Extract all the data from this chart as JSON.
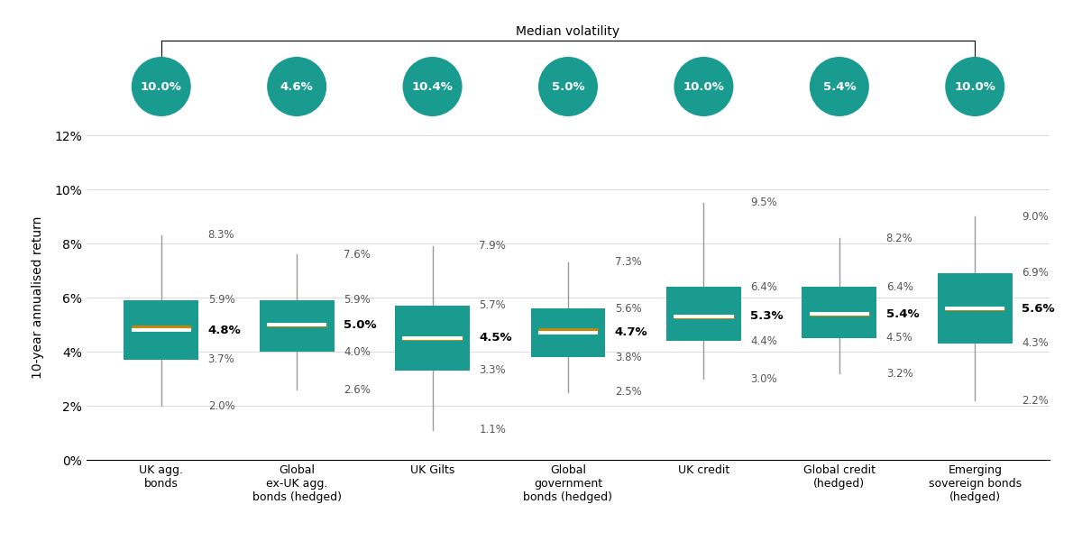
{
  "categories": [
    "UK agg.\nbonds",
    "Global\nex-UK agg.\nbonds (hedged)",
    "UK Gilts",
    "Global\ngovernment\nbonds (hedged)",
    "UK credit",
    "Global credit\n(hedged)",
    "Emerging\nsovereign bonds\n(hedged)"
  ],
  "box_data": [
    {
      "whisker_low": 2.0,
      "q1": 3.7,
      "median": 4.8,
      "mean": 4.9,
      "q3": 5.9,
      "whisker_high": 8.3
    },
    {
      "whisker_low": 2.6,
      "q1": 4.0,
      "median": 5.0,
      "mean": 5.0,
      "q3": 5.9,
      "whisker_high": 7.6
    },
    {
      "whisker_low": 1.1,
      "q1": 3.3,
      "median": 4.5,
      "mean": 4.5,
      "q3": 5.7,
      "whisker_high": 7.9
    },
    {
      "whisker_low": 2.5,
      "q1": 3.8,
      "median": 4.7,
      "mean": 4.8,
      "q3": 5.6,
      "whisker_high": 7.3
    },
    {
      "whisker_low": 3.0,
      "q1": 4.4,
      "median": 5.3,
      "mean": 5.3,
      "q3": 6.4,
      "whisker_high": 9.5
    },
    {
      "whisker_low": 3.2,
      "q1": 4.5,
      "median": 5.4,
      "mean": 5.4,
      "q3": 6.4,
      "whisker_high": 8.2
    },
    {
      "whisker_low": 2.2,
      "q1": 4.3,
      "median": 5.6,
      "mean": 5.6,
      "q3": 6.9,
      "whisker_high": 9.0
    }
  ],
  "median_labels": [
    "4.8%",
    "5.0%",
    "4.5%",
    "4.7%",
    "5.3%",
    "5.4%",
    "5.6%"
  ],
  "volatility_labels": [
    "10.0%",
    "4.6%",
    "10.4%",
    "5.0%",
    "10.0%",
    "5.4%",
    "10.0%"
  ],
  "box_color": "#1A9B8F",
  "whisker_color": "#999999",
  "median_line_color": "#FFFFFF",
  "mean_line_color": "#C8860A",
  "volatility_ellipse_color": "#1A9B8F",
  "title": "Median volatility",
  "ylabel": "10-year annualised return",
  "ylim": [
    0,
    12
  ],
  "yticks": [
    0,
    2,
    4,
    6,
    8,
    10,
    12
  ],
  "ytick_labels": [
    "0%",
    "2%",
    "4%",
    "6%",
    "8%",
    "10%",
    "12%"
  ],
  "box_width": 0.55,
  "background_color": "#FFFFFF",
  "label_fontsize": 8.5,
  "median_label_fontsize": 9.5
}
